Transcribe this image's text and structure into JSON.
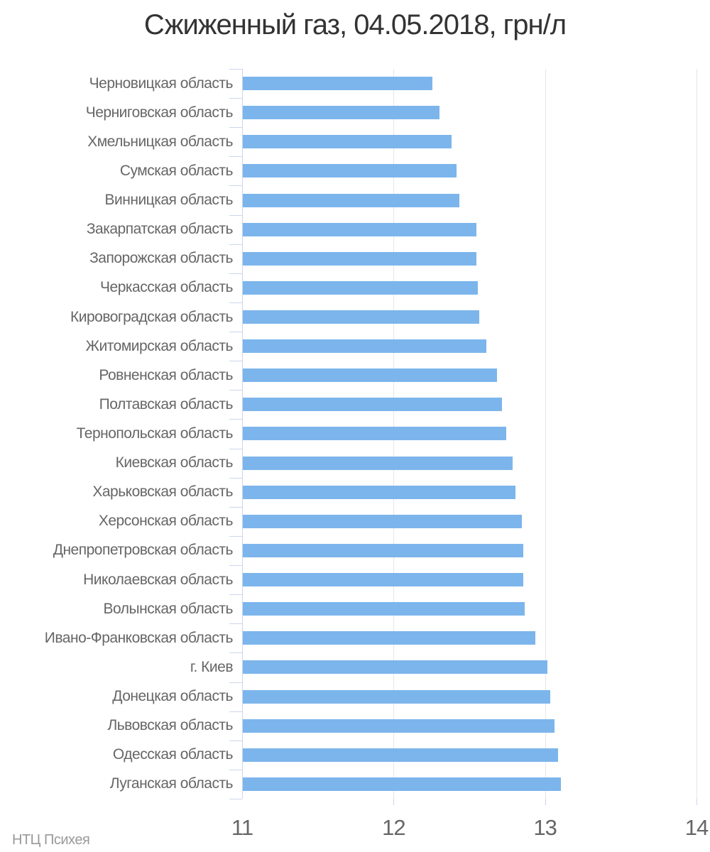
{
  "chart_data": {
    "type": "bar",
    "title": "Сжиженный газ, 04.05.2018, грн/л",
    "xlabel": "",
    "ylabel": "",
    "xlim": [
      11,
      14
    ],
    "x_ticks": [
      11,
      12,
      13,
      14
    ],
    "grid": "vertical",
    "legend": "none",
    "categories": [
      "Черновицкая область",
      "Черниговская область",
      "Хмельницкая область",
      "Сумская область",
      "Винницкая область",
      "Закарпатская область",
      "Запорожская область",
      "Черкасская область",
      "Кировоградская область",
      "Житомирская область",
      "Ровненская область",
      "Полтавская область",
      "Тернопольская область",
      "Киевская область",
      "Харьковская область",
      "Херсонская область",
      "Днепропетровская область",
      "Николаевская область",
      "Волынская область",
      "Ивано-Франковская область",
      "г. Киев",
      "Донецкая область",
      "Львовская область",
      "Одесская область",
      "Луганская область"
    ],
    "values": [
      12.25,
      12.3,
      12.38,
      12.41,
      12.43,
      12.54,
      12.54,
      12.55,
      12.56,
      12.61,
      12.68,
      12.71,
      12.74,
      12.78,
      12.8,
      12.84,
      12.85,
      12.85,
      12.86,
      12.93,
      13.01,
      13.03,
      13.06,
      13.08,
      13.1
    ],
    "colors": {
      "bar": "#7cb5ec",
      "axis_line": "#ccd6eb",
      "grid_line": "#e6e6e6",
      "title_text": "#333333",
      "label_text": "#666666",
      "credits_text": "#999999"
    }
  },
  "footer": {
    "credits": "НТЦ Психея"
  }
}
